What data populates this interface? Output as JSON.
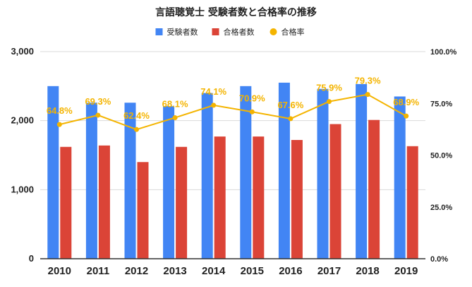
{
  "chart_data": {
    "type": "bar",
    "title": "言語聴覚士 受験者数と合格率の推移",
    "categories": [
      "2010",
      "2011",
      "2012",
      "2013",
      "2014",
      "2015",
      "2016",
      "2017",
      "2018",
      "2019"
    ],
    "series": [
      {
        "name": "受験者数",
        "type": "bar",
        "axis": "left",
        "color": "#4285f4",
        "values": [
          2500,
          2260,
          2260,
          2210,
          2400,
          2500,
          2550,
          2460,
          2530,
          2350
        ]
      },
      {
        "name": "合格者数",
        "type": "bar",
        "axis": "left",
        "color": "#db4437",
        "values": [
          1620,
          1640,
          1400,
          1620,
          1770,
          1770,
          1720,
          1950,
          2010,
          1630
        ]
      },
      {
        "name": "合格率",
        "type": "line",
        "axis": "right",
        "color": "#f4b400",
        "values": [
          64.8,
          69.3,
          62.4,
          68.1,
          74.1,
          70.9,
          67.6,
          75.9,
          79.3,
          68.9
        ],
        "labels": [
          "64.8%",
          "69.3%",
          "62.4%",
          "68.1%",
          "74.1%",
          "70.9%",
          "67.6%",
          "75.9%",
          "79.3%",
          "68.9%"
        ]
      }
    ],
    "y_left": {
      "ylim": [
        0,
        3000
      ],
      "ticks": [
        0,
        1000,
        2000,
        3000
      ],
      "tick_labels": [
        "0",
        "1,000",
        "2,000",
        "3,000"
      ]
    },
    "y_right": {
      "ylim": [
        0,
        100
      ],
      "ticks": [
        0,
        25,
        50,
        75,
        100
      ],
      "tick_labels": [
        "0.0%",
        "25.0%",
        "50.0%",
        "75.0%",
        "100.0%"
      ]
    },
    "grid": true,
    "legend_position": "top-center",
    "colors": {
      "gridline": "#d9d9d9",
      "axis": "#333333",
      "text": "#222222"
    }
  }
}
